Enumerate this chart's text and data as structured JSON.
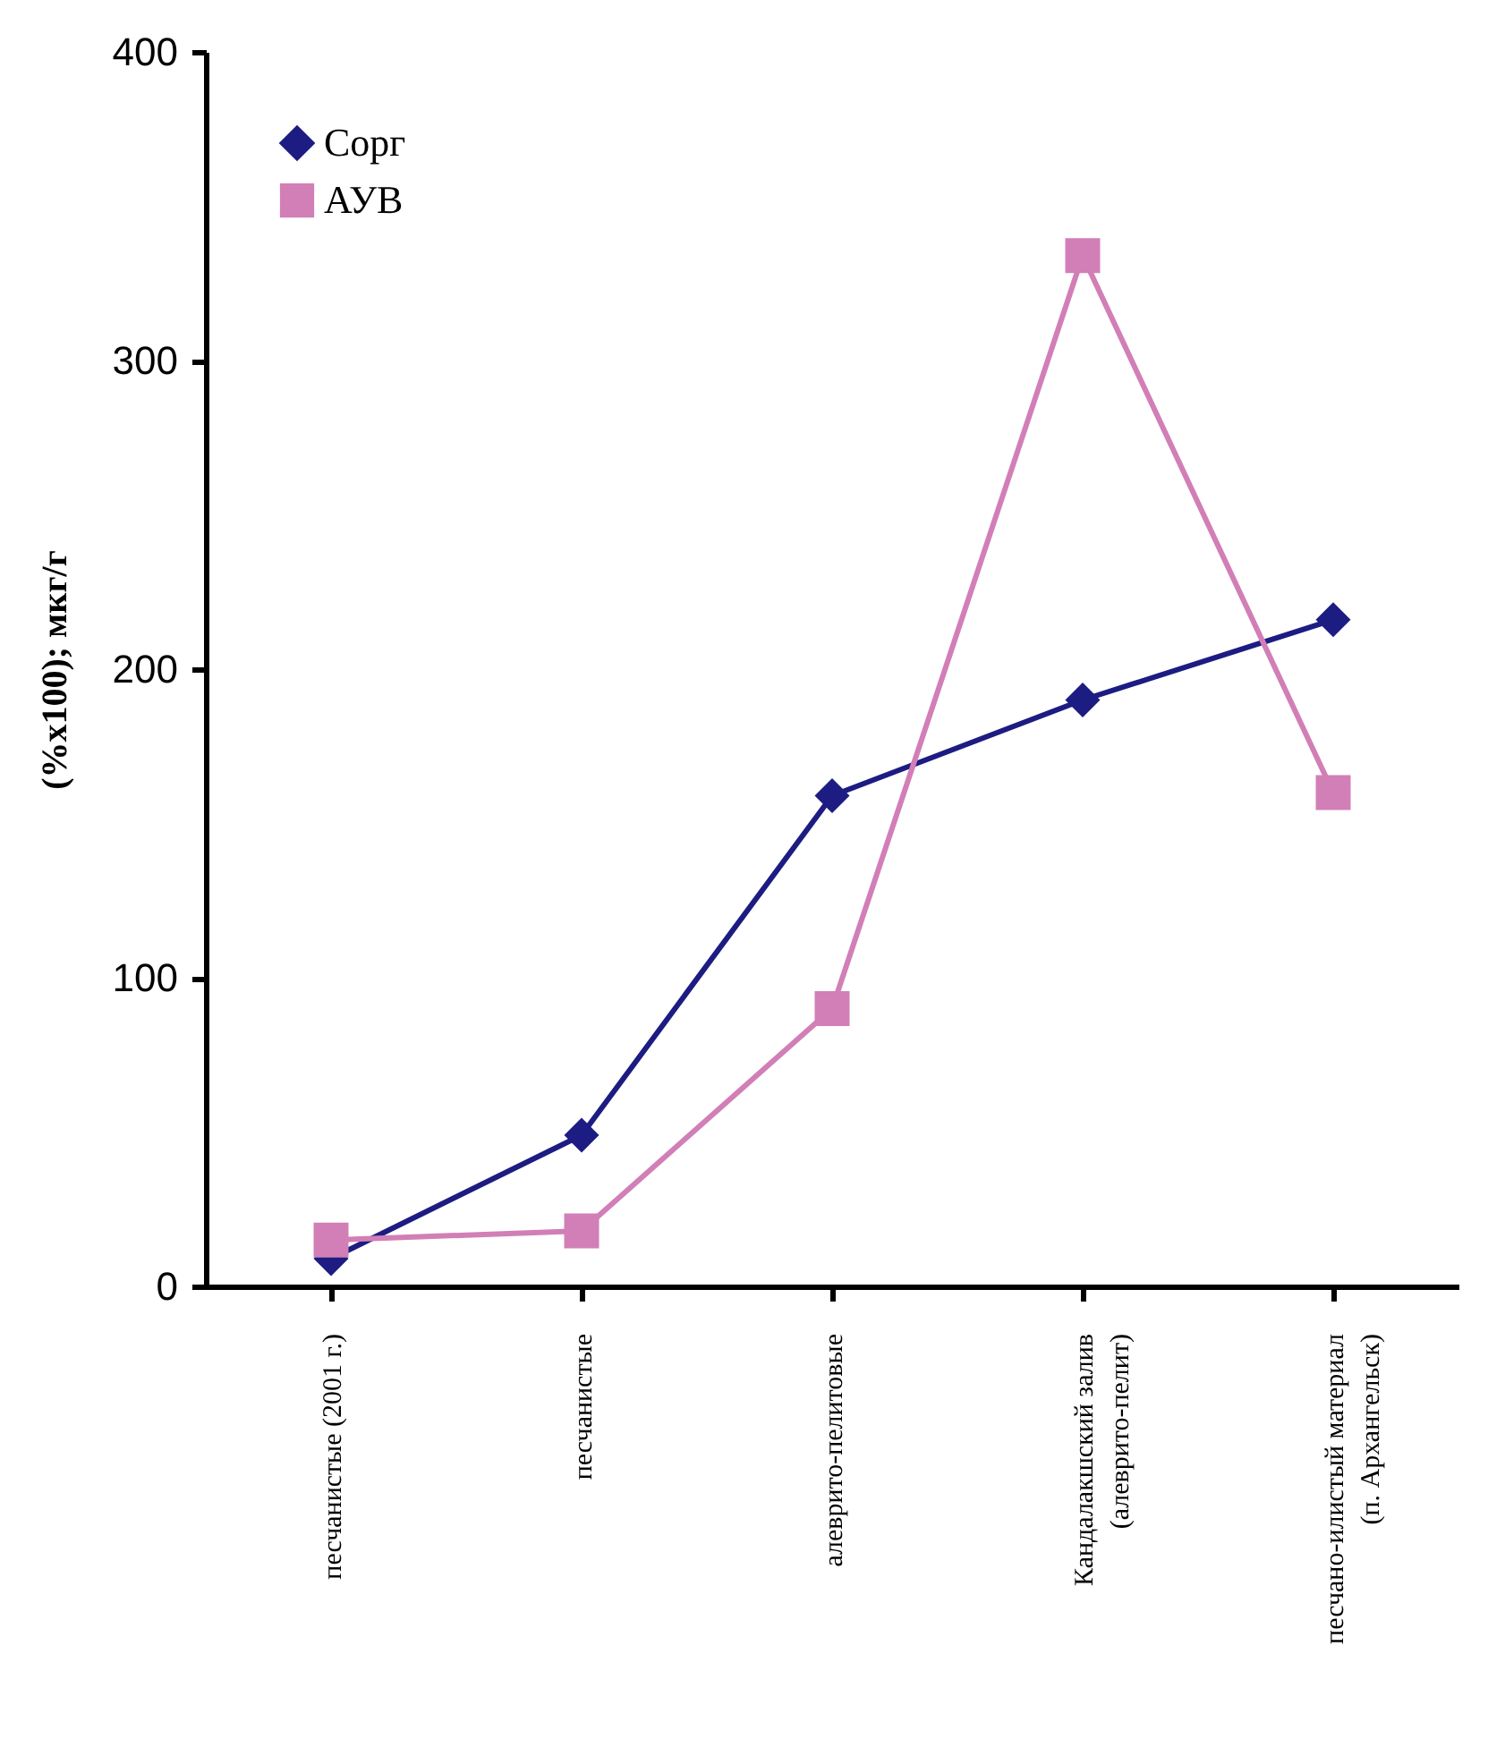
{
  "chart_data": {
    "type": "line",
    "ylabel": "(%x100);  мкг/г",
    "categories": [
      "песчанистые (2001 г.)",
      "песчанистые",
      "алеврито-пелитовые",
      "Кандалакшский залив\n(алеврито-пелит)",
      "песчано-илистый материал\n(п. Архангельск)"
    ],
    "series": [
      {
        "name": "Сорг",
        "color": "#1c1c82",
        "marker": "diamond",
        "values": [
          9,
          49,
          159,
          190,
          216
        ]
      },
      {
        "name": "АУВ",
        "color": "#d17fb6",
        "marker": "square",
        "values": [
          15,
          18,
          90,
          334,
          160
        ]
      }
    ],
    "ylim": [
      0,
      400
    ],
    "yticks": [
      0,
      100,
      200,
      300,
      400
    ],
    "grid": false,
    "legend": "top left"
  }
}
